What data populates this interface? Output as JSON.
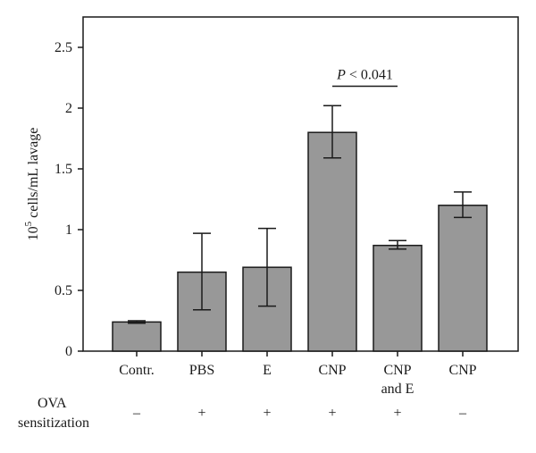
{
  "chart_data": {
    "type": "bar",
    "categories": [
      "Contr.",
      "PBS",
      "E",
      "CNP",
      "CNP and E",
      "CNP"
    ],
    "category_label_lines": [
      [
        "Contr."
      ],
      [
        "PBS"
      ],
      [
        "E"
      ],
      [
        "CNP"
      ],
      [
        "CNP",
        "and E"
      ],
      [
        "CNP"
      ]
    ],
    "values": [
      0.24,
      0.65,
      0.69,
      1.8,
      0.87,
      1.2
    ],
    "error_low": [
      0.23,
      0.34,
      0.37,
      1.59,
      0.84,
      1.1
    ],
    "error_high": [
      0.25,
      0.97,
      1.01,
      2.02,
      0.91,
      1.31
    ],
    "ylim": [
      0,
      2.75
    ],
    "yticks": [
      0,
      0.5,
      1,
      1.5,
      2,
      2.5
    ],
    "ytick_labels": [
      "0",
      "0.5",
      "1",
      "1.5",
      "2",
      "2.5"
    ],
    "ylabel_base": "10",
    "ylabel_exp": "5",
    "ylabel_rest": " cells/mL lavage",
    "xlabel": "",
    "title": "",
    "annotation": {
      "italic": "P",
      "text": " < 0.041",
      "between": [
        3,
        4
      ],
      "level": 2.18
    },
    "row": {
      "label_line1": "OVA",
      "label_line2": "sensitization",
      "signs": [
        "–",
        "+",
        "+",
        "+",
        "+",
        "–"
      ]
    },
    "colors": {
      "bar_fill": "#989898",
      "bar_stroke": "#1a1a1a",
      "axis": "#1a1a1a"
    }
  }
}
